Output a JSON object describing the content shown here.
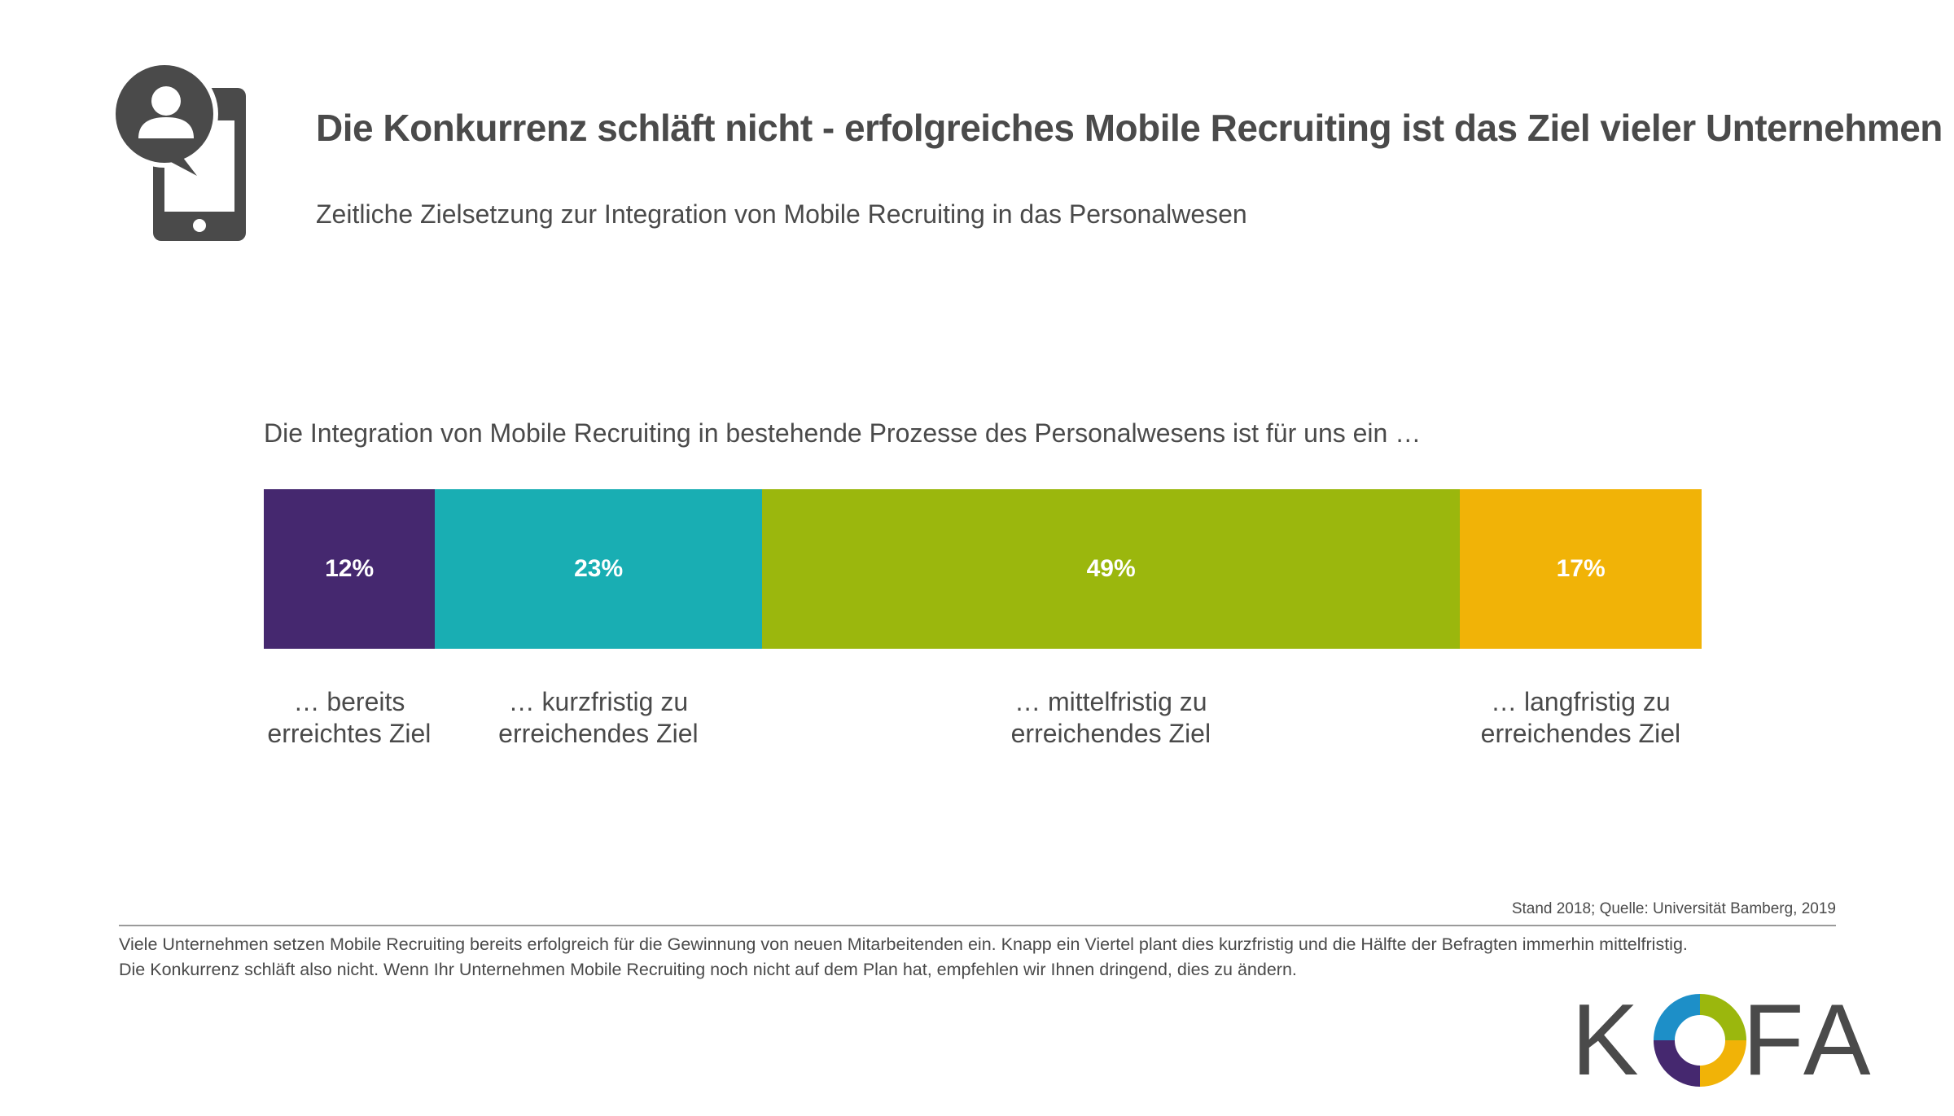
{
  "header": {
    "title": "Die Konkurrenz schläft nicht - erfolgreiches Mobile Recruiting ist das Ziel vieler Unternehmen",
    "subtitle": "Zeitliche Zielsetzung zur Integration von Mobile Recruiting in das Personalwesen",
    "icon": "mobile-recruiting-icon"
  },
  "question": "Die Integration von Mobile Recruiting in bestehende Prozesse des Personalwesens ist für uns ein …",
  "chart_data": {
    "type": "bar",
    "orientation": "horizontal-stacked",
    "title": "Die Integration von Mobile Recruiting in bestehende Prozesse des Personalwesens ist für uns ein …",
    "categories": [
      "… bereits erreichtes Ziel",
      "… kurzfristig zu erreichendes Ziel",
      "… mittelfristig zu erreichendes Ziel",
      "… langfristig zu erreichendes Ziel"
    ],
    "values": [
      12,
      23,
      49,
      17
    ],
    "unit": "%",
    "colors": [
      "#45286f",
      "#19aeb3",
      "#9bb70d",
      "#f1b307"
    ],
    "segments": [
      {
        "value": 12,
        "value_label": "12%",
        "label_line1": "… bereits",
        "label_line2": "erreichtes Ziel",
        "color": "#45286f"
      },
      {
        "value": 23,
        "value_label": "23%",
        "label_line1": "… kurzfristig zu",
        "label_line2": "erreichendes Ziel",
        "color": "#19aeb3"
      },
      {
        "value": 49,
        "value_label": "49%",
        "label_line1": "… mittelfristig zu",
        "label_line2": "erreichendes Ziel",
        "color": "#9bb70d"
      },
      {
        "value": 17,
        "value_label": "17%",
        "label_line1": "… langfristig zu",
        "label_line2": "erreichendes Ziel",
        "color": "#f1b307"
      }
    ]
  },
  "source": "Stand 2018; Quelle: Universität Bamberg, 2019",
  "footnote": {
    "line1": "Viele Unternehmen setzen Mobile Recruiting bereits erfolgreich für die Gewinnung von neuen Mitarbeitenden ein. Knapp ein Viertel plant dies kurzfristig und die Hälfte der Befragten immerhin mittelfristig.",
    "line2": "Die Konkurrenz schläft also nicht. Wenn Ihr Unternehmen Mobile Recruiting noch nicht auf dem Plan hat, empfehlen wir Ihnen dringend, dies zu ändern."
  },
  "logo": {
    "k": "K",
    "fa": "FA"
  },
  "colors": {
    "text": "#4a4a4a",
    "icon": "#4a4a4a",
    "divider": "#9a9a9a"
  }
}
